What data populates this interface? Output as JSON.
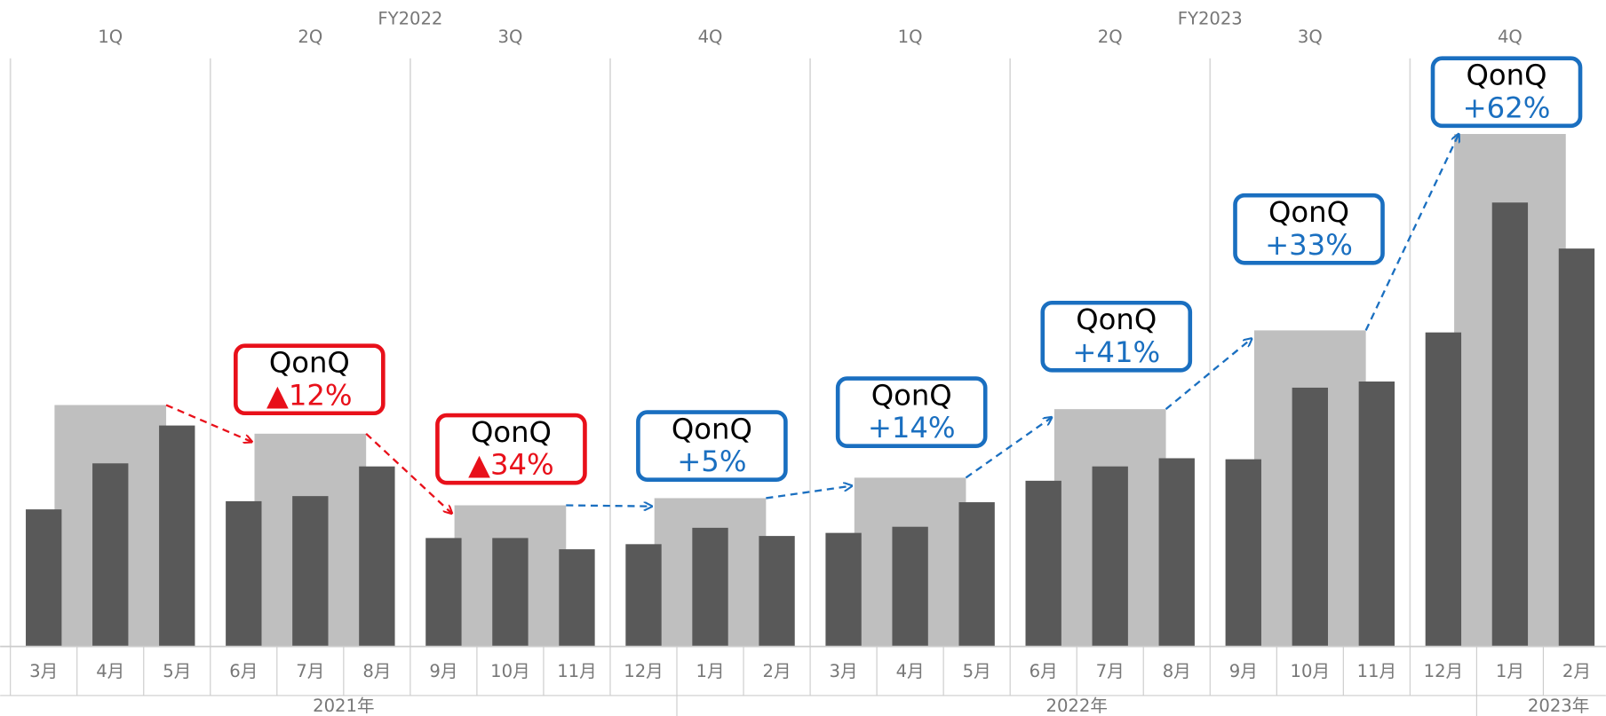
{
  "chart_data": {
    "type": "bar",
    "fiscal_years": [
      "FY2022",
      "FY2023"
    ],
    "quarters": [
      "1Q",
      "2Q",
      "3Q",
      "4Q",
      "1Q",
      "2Q",
      "3Q",
      "4Q"
    ],
    "categories": [
      "3月",
      "4月",
      "5月",
      "6月",
      "7月",
      "8月",
      "9月",
      "10月",
      "11月",
      "12月",
      "1月",
      "2月",
      "3月",
      "4月",
      "5月",
      "6月",
      "7月",
      "8月",
      "9月",
      "10月",
      "11月",
      "12月",
      "1月",
      "2月"
    ],
    "years": [
      "2021年",
      "2022年",
      "2023年"
    ],
    "monthly_values": [
      134,
      179,
      216,
      142,
      147,
      176,
      106,
      106,
      95,
      100,
      116,
      108,
      111,
      117,
      141,
      162,
      176,
      184,
      183,
      253,
      259,
      307,
      434,
      389
    ],
    "monthly_color": "#595959",
    "quarterly_values": [
      236,
      208,
      138,
      145,
      165,
      232,
      309,
      501
    ],
    "quarterly_color": "#bfbfbf",
    "ylim": [
      0,
      575
    ],
    "annotations": [
      {
        "label": "QonQ",
        "change": "▲12%",
        "color": "#e8101a"
      },
      {
        "label": "QonQ",
        "change": "▲34%",
        "color": "#e8101a"
      },
      {
        "label": "QonQ",
        "change": "+5%",
        "color": "#1a6fc0"
      },
      {
        "label": "QonQ",
        "change": "+14%",
        "color": "#1a6fc0"
      },
      {
        "label": "QonQ",
        "change": "+41%",
        "color": "#1a6fc0"
      },
      {
        "label": "QonQ",
        "change": "+33%",
        "color": "#1a6fc0"
      },
      {
        "label": "QonQ",
        "change": "+62%",
        "color": "#1a6fc0"
      }
    ]
  }
}
